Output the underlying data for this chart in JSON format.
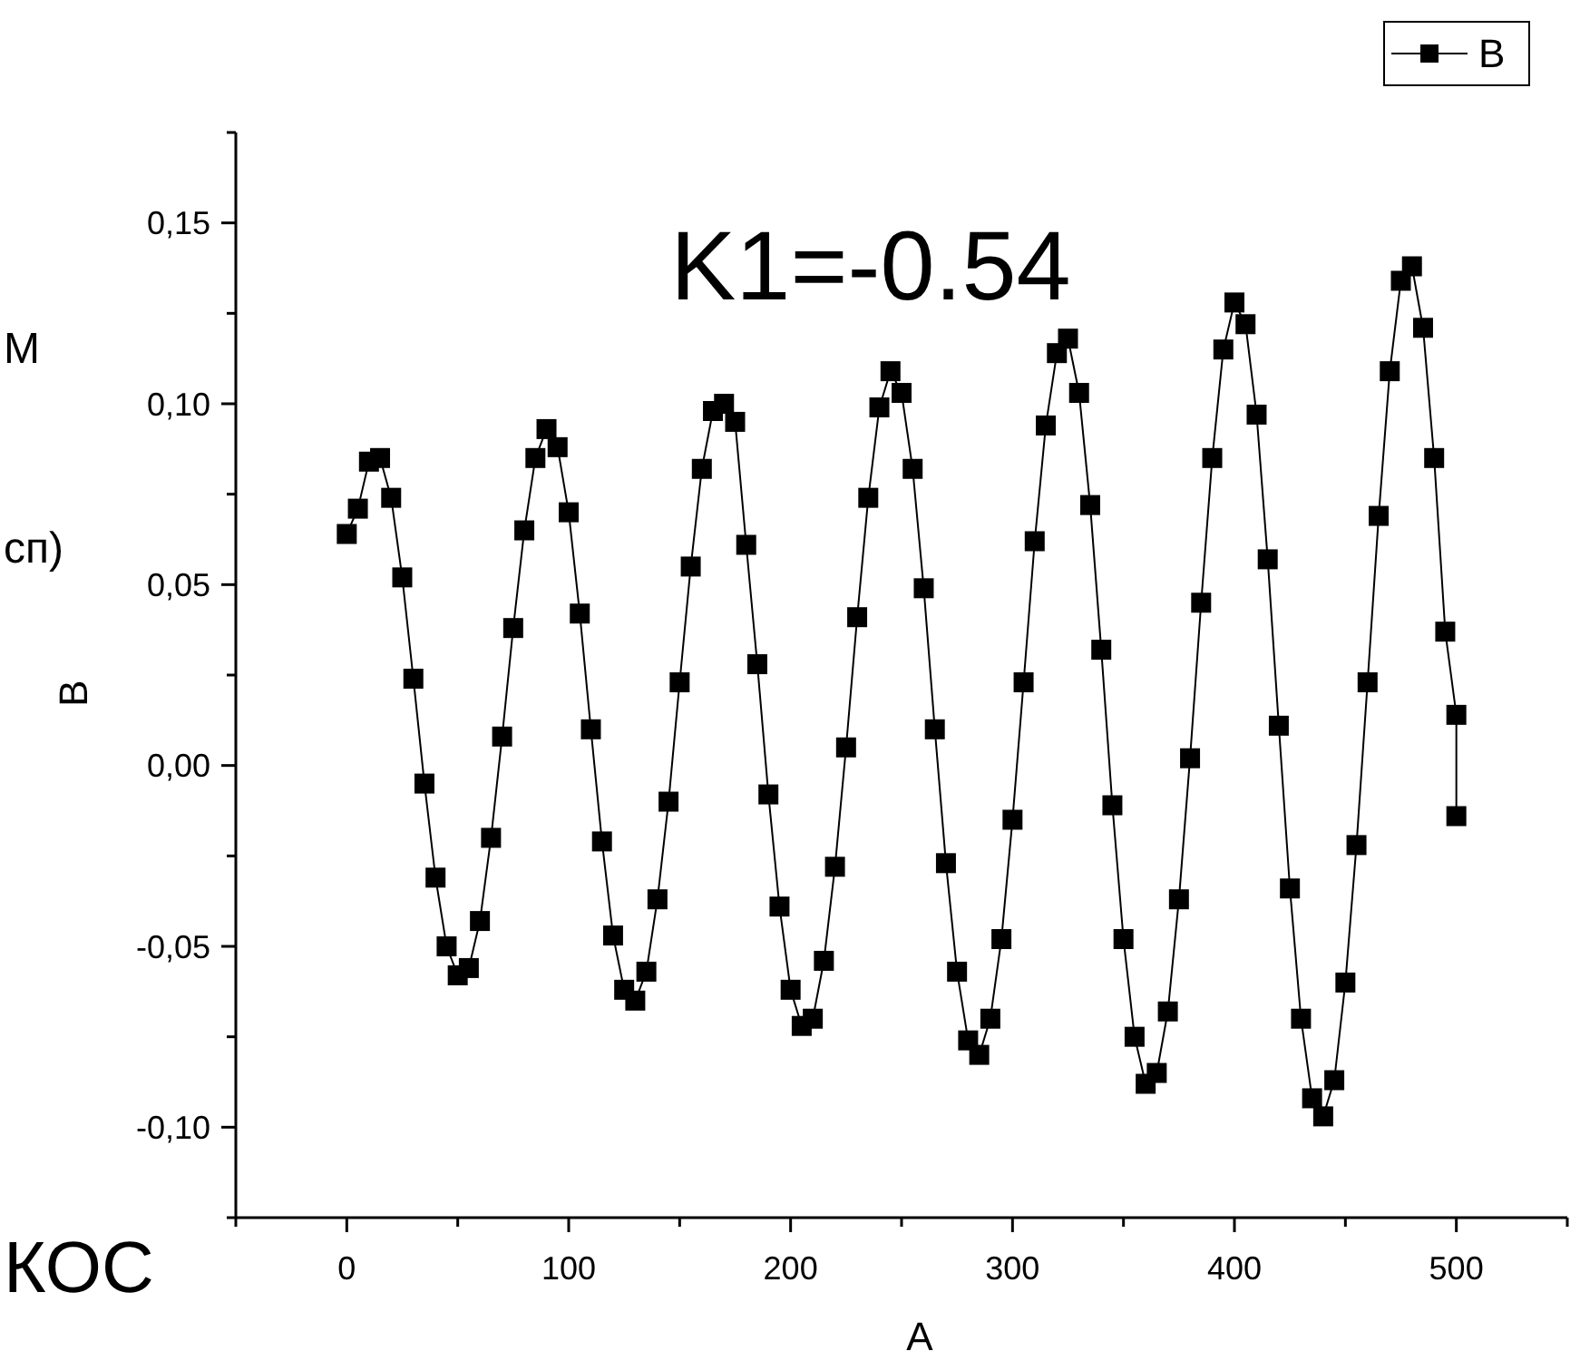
{
  "chart_data": {
    "type": "line",
    "title": "K1=-0.54",
    "xlabel": "A",
    "ylabel": "B",
    "annotations": [
      "М",
      "сп)",
      "КОС"
    ],
    "x": [
      0,
      5,
      10,
      15,
      20,
      25,
      30,
      35,
      40,
      45,
      50,
      55,
      60,
      65,
      70,
      75,
      80,
      85,
      90,
      95,
      100,
      105,
      110,
      115,
      120,
      125,
      130,
      135,
      140,
      145,
      150,
      155,
      160,
      165,
      170,
      175,
      180,
      185,
      190,
      195,
      200,
      205,
      210,
      215,
      220,
      225,
      230,
      235,
      240,
      245,
      250,
      255,
      260,
      265,
      270,
      275,
      280,
      285,
      290,
      295,
      300,
      305,
      310,
      315,
      320,
      325,
      330,
      335,
      340,
      345,
      350,
      355,
      360,
      365,
      370,
      375,
      380,
      385,
      390,
      395,
      400,
      405,
      410,
      415,
      420,
      425,
      430,
      435,
      440,
      445,
      450,
      455,
      460,
      465,
      470,
      475,
      480,
      485,
      490,
      495,
      500,
      500
    ],
    "series": [
      {
        "name": "B",
        "color": "#000000",
        "values": [
          0.064,
          0.071,
          0.084,
          0.085,
          0.074,
          0.052,
          0.024,
          -0.005,
          -0.031,
          -0.05,
          -0.058,
          -0.056,
          -0.043,
          -0.02,
          0.008,
          0.038,
          0.065,
          0.085,
          0.093,
          0.088,
          0.07,
          0.042,
          0.01,
          -0.021,
          -0.047,
          -0.062,
          -0.065,
          -0.057,
          -0.037,
          -0.01,
          0.023,
          0.055,
          0.082,
          0.098,
          0.1,
          0.095,
          0.061,
          0.028,
          -0.008,
          -0.039,
          -0.062,
          -0.072,
          -0.07,
          -0.054,
          -0.028,
          0.005,
          0.041,
          0.074,
          0.099,
          0.109,
          0.103,
          0.082,
          0.049,
          0.01,
          -0.027,
          -0.057,
          -0.076,
          -0.08,
          -0.07,
          -0.048,
          -0.015,
          0.023,
          0.062,
          0.094,
          0.114,
          0.118,
          0.103,
          0.072,
          0.032,
          -0.011,
          -0.048,
          -0.075,
          -0.088,
          -0.085,
          -0.068,
          -0.037,
          0.002,
          0.045,
          0.085,
          0.115,
          0.128,
          0.122,
          0.097,
          0.057,
          0.011,
          -0.034,
          -0.07,
          -0.092,
          -0.097,
          -0.087,
          -0.06,
          -0.022,
          0.023,
          0.069,
          0.109,
          0.134,
          0.138,
          0.121,
          0.085,
          0.037,
          0.014,
          -0.014
        ]
      }
    ],
    "xlim": [
      -50,
      550
    ],
    "xticks": [
      {
        "value": -50,
        "label": null
      },
      0,
      {
        "value": 50,
        "label": null
      },
      100,
      {
        "value": 150,
        "label": null
      },
      200,
      {
        "value": 250,
        "label": null
      },
      300,
      {
        "value": 350,
        "label": null
      },
      400,
      {
        "value": 450,
        "label": null
      },
      500,
      {
        "value": 550,
        "label": null
      }
    ],
    "ylim": [
      -0.125,
      0.175
    ],
    "yticks": [
      {
        "value": -0.125,
        "label": null
      },
      {
        "value": -0.1,
        "label": "-0,10"
      },
      {
        "value": -0.075,
        "label": null
      },
      {
        "value": -0.05,
        "label": "-0,05"
      },
      {
        "value": -0.025,
        "label": null
      },
      {
        "value": 0,
        "label": "0,00"
      },
      {
        "value": 0.025,
        "label": null
      },
      {
        "value": 0.05,
        "label": "0,05"
      },
      {
        "value": 0.075,
        "label": null
      },
      {
        "value": 0.1,
        "label": "0,10"
      },
      {
        "value": 0.125,
        "label": null
      },
      {
        "value": 0.15,
        "label": "0,15"
      },
      {
        "value": 0.175,
        "label": null
      }
    ],
    "marker": "square",
    "line_style": "solid",
    "legend": "top right",
    "grid": false
  }
}
